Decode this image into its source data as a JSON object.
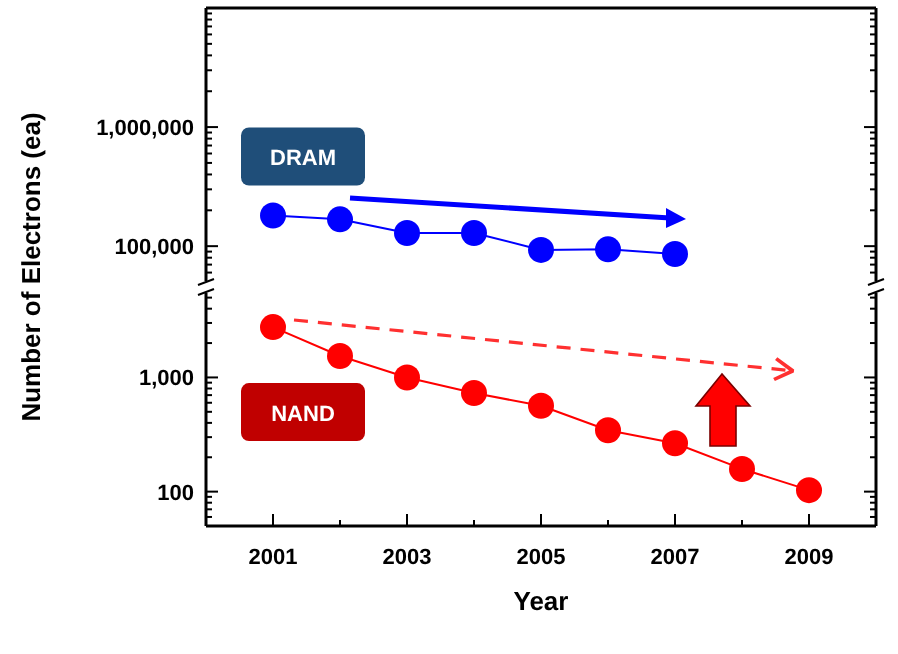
{
  "chart_data": [
    {
      "type": "line",
      "ylabel": "Number of Electrons (ea)",
      "x": [
        2001,
        2002,
        2003,
        2004,
        2005,
        2006,
        2007
      ],
      "series": [
        {
          "name": "DRAM",
          "color": "#0000ff",
          "values": [
            181000,
            168000,
            129000,
            129000,
            93000,
            94000,
            86000
          ]
        }
      ],
      "xlim": [
        2000,
        2010
      ],
      "ylim": [
        50000,
        10000000
      ],
      "log": true,
      "yticks": [
        {
          "value": 60000,
          "label": null
        },
        {
          "value": 70000,
          "label": null
        },
        {
          "value": 80000,
          "label": null
        },
        {
          "value": 90000,
          "label": null
        },
        {
          "value": 100000,
          "label": "100,000"
        },
        {
          "value": 200000,
          "label": null
        },
        {
          "value": 300000,
          "label": null
        },
        {
          "value": 400000,
          "label": null
        },
        {
          "value": 500000,
          "label": null
        },
        {
          "value": 600000,
          "label": null
        },
        {
          "value": 700000,
          "label": null
        },
        {
          "value": 800000,
          "label": null
        },
        {
          "value": 900000,
          "label": null
        },
        {
          "value": 1000000,
          "label": "1,000,000"
        },
        {
          "value": 2000000,
          "label": null
        },
        {
          "value": 3000000,
          "label": null
        },
        {
          "value": 4000000,
          "label": null
        },
        {
          "value": 5000000,
          "label": null
        },
        {
          "value": 6000000,
          "label": null
        },
        {
          "value": 7000000,
          "label": null
        },
        {
          "value": 8000000,
          "label": null
        },
        {
          "value": 9000000,
          "label": null
        }
      ],
      "tick_labels": "y",
      "marker": "circle",
      "line_style": "solid",
      "grid": false,
      "legend": false
    },
    {
      "type": "line",
      "xlabel": "Year",
      "x": [
        2001,
        2002,
        2003,
        2004,
        2005,
        2006,
        2007,
        2008,
        2009
      ],
      "series": [
        {
          "name": "NAND",
          "color": "#ff0000",
          "values": [
            2760,
            1540,
            1000,
            730,
            565,
            345,
            265,
            158,
            103
          ]
        }
      ],
      "xlim": [
        2000,
        2010
      ],
      "xticks": [
        2001,
        {
          "value": 2002,
          "label": null
        },
        2003,
        {
          "value": 2004,
          "label": null
        },
        2005,
        {
          "value": 2006,
          "label": null
        },
        2007,
        {
          "value": 2008,
          "label": null
        },
        2009
      ],
      "ylim": [
        50,
        5600
      ],
      "log": true,
      "yticks": [
        {
          "value": 60,
          "label": null
        },
        {
          "value": 70,
          "label": null
        },
        {
          "value": 80,
          "label": null
        },
        {
          "value": 90,
          "label": null
        },
        {
          "value": 100,
          "label": "100"
        },
        {
          "value": 200,
          "label": null
        },
        {
          "value": 300,
          "label": null
        },
        {
          "value": 400,
          "label": null
        },
        {
          "value": 500,
          "label": null
        },
        {
          "value": 600,
          "label": null
        },
        {
          "value": 700,
          "label": null
        },
        {
          "value": 800,
          "label": null
        },
        {
          "value": 900,
          "label": null
        },
        {
          "value": 1000,
          "label": "1,000"
        },
        {
          "value": 2000,
          "label": null
        },
        {
          "value": 3000,
          "label": null
        },
        {
          "value": 4000,
          "label": null
        },
        {
          "value": 5000,
          "label": null
        }
      ],
      "marker": "circle",
      "line_style": "solid",
      "grid": false,
      "legend": false
    }
  ]
}
